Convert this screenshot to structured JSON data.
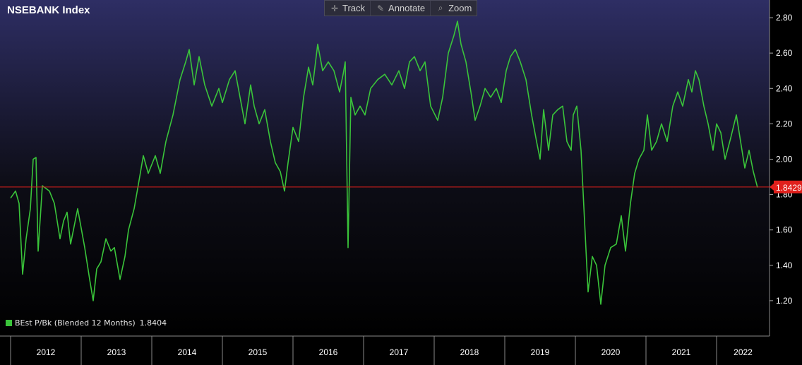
{
  "title": "NSEBANK Index",
  "toolbar": {
    "track": "Track",
    "annotate": "Annotate",
    "zoom": "Zoom",
    "icons": [
      "crosshair-icon",
      "pencil-icon",
      "magnifier-icon"
    ]
  },
  "legend": {
    "label": "BEst P/Bk (Blended 12 Months)",
    "value": "1.8404"
  },
  "colors": {
    "series": "#3ac43a",
    "reference_line": "#e0201c",
    "badge": "#e0201c",
    "axis_text": "#ffffff"
  },
  "chart_data": {
    "type": "line",
    "title": "NSEBANK Index",
    "ylim": [
      1.0,
      2.9
    ],
    "y_ticks": [
      "1.20",
      "1.40",
      "1.60",
      "1.80",
      "2.00",
      "2.20",
      "2.40",
      "2.60",
      "2.80"
    ],
    "x_ticks": [
      "2012",
      "2013",
      "2014",
      "2015",
      "2016",
      "2017",
      "2018",
      "2019",
      "2020",
      "2021",
      "2022"
    ],
    "reference_line": {
      "value": 1.8429,
      "label": "1.8429"
    },
    "series": [
      {
        "name": "BEst P/Bk (Blended 12 Months)",
        "points": [
          [
            2012.0,
            1.78
          ],
          [
            2012.07,
            1.82
          ],
          [
            2012.12,
            1.75
          ],
          [
            2012.17,
            1.35
          ],
          [
            2012.22,
            1.55
          ],
          [
            2012.28,
            1.72
          ],
          [
            2012.32,
            2.0
          ],
          [
            2012.36,
            2.01
          ],
          [
            2012.39,
            1.48
          ],
          [
            2012.45,
            1.85
          ],
          [
            2012.55,
            1.82
          ],
          [
            2012.62,
            1.75
          ],
          [
            2012.7,
            1.55
          ],
          [
            2012.75,
            1.65
          ],
          [
            2012.8,
            1.7
          ],
          [
            2012.85,
            1.52
          ],
          [
            2012.95,
            1.72
          ],
          [
            2013.05,
            1.5
          ],
          [
            2013.12,
            1.32
          ],
          [
            2013.17,
            1.2
          ],
          [
            2013.22,
            1.38
          ],
          [
            2013.28,
            1.42
          ],
          [
            2013.35,
            1.55
          ],
          [
            2013.42,
            1.48
          ],
          [
            2013.47,
            1.5
          ],
          [
            2013.55,
            1.32
          ],
          [
            2013.62,
            1.45
          ],
          [
            2013.67,
            1.6
          ],
          [
            2013.75,
            1.72
          ],
          [
            2013.82,
            1.88
          ],
          [
            2013.88,
            2.02
          ],
          [
            2013.95,
            1.92
          ],
          [
            2014.05,
            2.02
          ],
          [
            2014.12,
            1.92
          ],
          [
            2014.2,
            2.1
          ],
          [
            2014.3,
            2.25
          ],
          [
            2014.4,
            2.45
          ],
          [
            2014.48,
            2.55
          ],
          [
            2014.53,
            2.62
          ],
          [
            2014.6,
            2.42
          ],
          [
            2014.67,
            2.58
          ],
          [
            2014.75,
            2.42
          ],
          [
            2014.85,
            2.3
          ],
          [
            2014.95,
            2.4
          ],
          [
            2015.0,
            2.32
          ],
          [
            2015.1,
            2.45
          ],
          [
            2015.18,
            2.5
          ],
          [
            2015.25,
            2.35
          ],
          [
            2015.32,
            2.2
          ],
          [
            2015.4,
            2.42
          ],
          [
            2015.45,
            2.3
          ],
          [
            2015.52,
            2.2
          ],
          [
            2015.6,
            2.28
          ],
          [
            2015.68,
            2.1
          ],
          [
            2015.75,
            1.98
          ],
          [
            2015.82,
            1.93
          ],
          [
            2015.88,
            1.82
          ],
          [
            2015.93,
            1.98
          ],
          [
            2016.0,
            2.18
          ],
          [
            2016.08,
            2.1
          ],
          [
            2016.15,
            2.35
          ],
          [
            2016.22,
            2.52
          ],
          [
            2016.28,
            2.42
          ],
          [
            2016.35,
            2.65
          ],
          [
            2016.42,
            2.5
          ],
          [
            2016.5,
            2.55
          ],
          [
            2016.58,
            2.5
          ],
          [
            2016.66,
            2.38
          ],
          [
            2016.71,
            2.48
          ],
          [
            2016.74,
            2.55
          ],
          [
            2016.78,
            1.5
          ],
          [
            2016.82,
            2.35
          ],
          [
            2016.88,
            2.25
          ],
          [
            2016.95,
            2.3
          ],
          [
            2017.02,
            2.25
          ],
          [
            2017.1,
            2.4
          ],
          [
            2017.2,
            2.45
          ],
          [
            2017.3,
            2.48
          ],
          [
            2017.4,
            2.42
          ],
          [
            2017.5,
            2.5
          ],
          [
            2017.58,
            2.4
          ],
          [
            2017.65,
            2.55
          ],
          [
            2017.72,
            2.58
          ],
          [
            2017.8,
            2.5
          ],
          [
            2017.87,
            2.55
          ],
          [
            2017.95,
            2.3
          ],
          [
            2018.05,
            2.22
          ],
          [
            2018.12,
            2.35
          ],
          [
            2018.2,
            2.6
          ],
          [
            2018.28,
            2.7
          ],
          [
            2018.33,
            2.78
          ],
          [
            2018.38,
            2.65
          ],
          [
            2018.45,
            2.55
          ],
          [
            2018.52,
            2.38
          ],
          [
            2018.58,
            2.22
          ],
          [
            2018.65,
            2.3
          ],
          [
            2018.72,
            2.4
          ],
          [
            2018.8,
            2.35
          ],
          [
            2018.88,
            2.4
          ],
          [
            2018.95,
            2.32
          ],
          [
            2019.02,
            2.5
          ],
          [
            2019.08,
            2.58
          ],
          [
            2019.15,
            2.62
          ],
          [
            2019.22,
            2.55
          ],
          [
            2019.3,
            2.45
          ],
          [
            2019.38,
            2.25
          ],
          [
            2019.45,
            2.1
          ],
          [
            2019.5,
            2.0
          ],
          [
            2019.55,
            2.28
          ],
          [
            2019.62,
            2.05
          ],
          [
            2019.68,
            2.25
          ],
          [
            2019.75,
            2.28
          ],
          [
            2019.82,
            2.3
          ],
          [
            2019.88,
            2.1
          ],
          [
            2019.94,
            2.05
          ],
          [
            2019.97,
            2.25
          ],
          [
            2020.02,
            2.3
          ],
          [
            2020.08,
            2.05
          ],
          [
            2020.13,
            1.65
          ],
          [
            2020.18,
            1.25
          ],
          [
            2020.24,
            1.45
          ],
          [
            2020.3,
            1.4
          ],
          [
            2020.36,
            1.18
          ],
          [
            2020.42,
            1.4
          ],
          [
            2020.5,
            1.5
          ],
          [
            2020.58,
            1.52
          ],
          [
            2020.65,
            1.68
          ],
          [
            2020.71,
            1.48
          ],
          [
            2020.78,
            1.75
          ],
          [
            2020.84,
            1.92
          ],
          [
            2020.9,
            2.0
          ],
          [
            2020.97,
            2.05
          ],
          [
            2021.02,
            2.25
          ],
          [
            2021.08,
            2.05
          ],
          [
            2021.15,
            2.1
          ],
          [
            2021.22,
            2.2
          ],
          [
            2021.3,
            2.1
          ],
          [
            2021.38,
            2.3
          ],
          [
            2021.45,
            2.38
          ],
          [
            2021.52,
            2.3
          ],
          [
            2021.6,
            2.45
          ],
          [
            2021.65,
            2.38
          ],
          [
            2021.7,
            2.5
          ],
          [
            2021.75,
            2.45
          ],
          [
            2021.82,
            2.3
          ],
          [
            2021.88,
            2.2
          ],
          [
            2021.95,
            2.05
          ],
          [
            2022.0,
            2.2
          ],
          [
            2022.06,
            2.15
          ],
          [
            2022.12,
            2.0
          ],
          [
            2022.2,
            2.12
          ],
          [
            2022.28,
            2.25
          ],
          [
            2022.34,
            2.1
          ],
          [
            2022.4,
            1.95
          ],
          [
            2022.46,
            2.05
          ],
          [
            2022.52,
            1.93
          ],
          [
            2022.58,
            1.84
          ]
        ]
      }
    ]
  }
}
